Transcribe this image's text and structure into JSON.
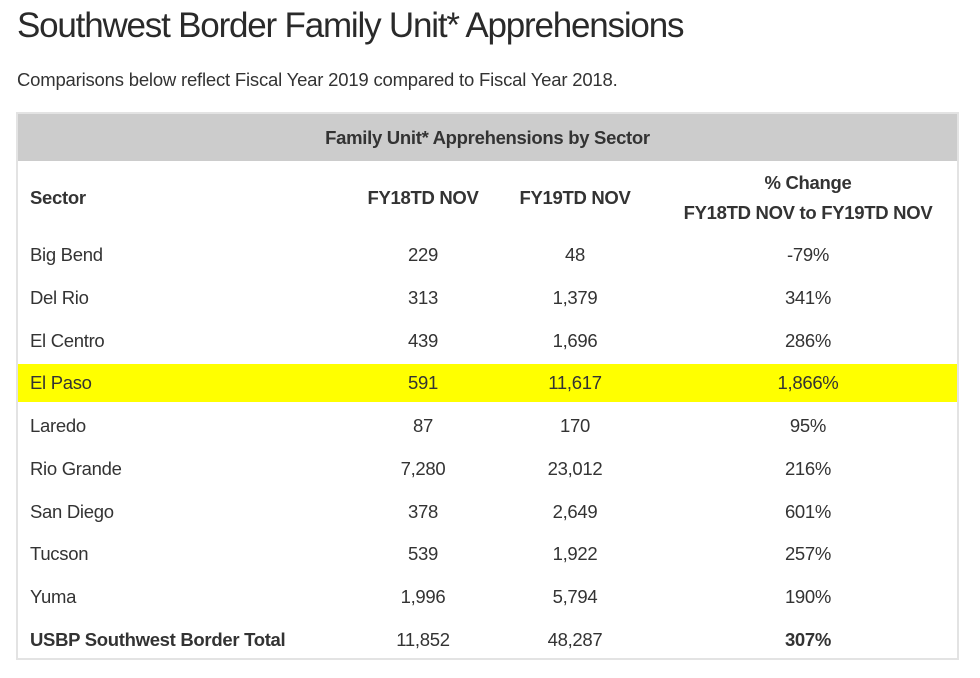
{
  "page": {
    "title": "Southwest Border Family Unit* Apprehensions",
    "subtitle": "Comparisons below reflect Fiscal Year 2019 compared to Fiscal Year 2018."
  },
  "table": {
    "caption": "Family Unit* Apprehensions by Sector",
    "highlight_color": "#ffff00",
    "header_bg": "#cccccc",
    "columns": {
      "sector": "Sector",
      "fy18": "FY18TD NOV",
      "fy19": "FY19TD NOV",
      "change_line1": "% Change",
      "change_line2": "FY18TD NOV to FY19TD NOV"
    },
    "rows": [
      {
        "sector": "Big Bend",
        "fy18": "229",
        "fy19": "48",
        "change": "-79%"
      },
      {
        "sector": "Del Rio",
        "fy18": "313",
        "fy19": "1,379",
        "change": "341%"
      },
      {
        "sector": "El Centro",
        "fy18": "439",
        "fy19": "1,696",
        "change": "286%"
      },
      {
        "sector": "El Paso",
        "fy18": "591",
        "fy19": "11,617",
        "change": "1,866%",
        "highlighted": true
      },
      {
        "sector": "Laredo",
        "fy18": "87",
        "fy19": "170",
        "change": "95%"
      },
      {
        "sector": "Rio Grande",
        "fy18": "7,280",
        "fy19": "23,012",
        "change": "216%"
      },
      {
        "sector": "San Diego",
        "fy18": "378",
        "fy19": "2,649",
        "change": "601%"
      },
      {
        "sector": "Tucson",
        "fy18": "539",
        "fy19": "1,922",
        "change": "257%"
      },
      {
        "sector": "Yuma",
        "fy18": "1,996",
        "fy19": "5,794",
        "change": "190%"
      }
    ],
    "total": {
      "sector": "USBP Southwest Border Total",
      "fy18": "11,852",
      "fy19": "48,287",
      "change": "307%"
    }
  }
}
